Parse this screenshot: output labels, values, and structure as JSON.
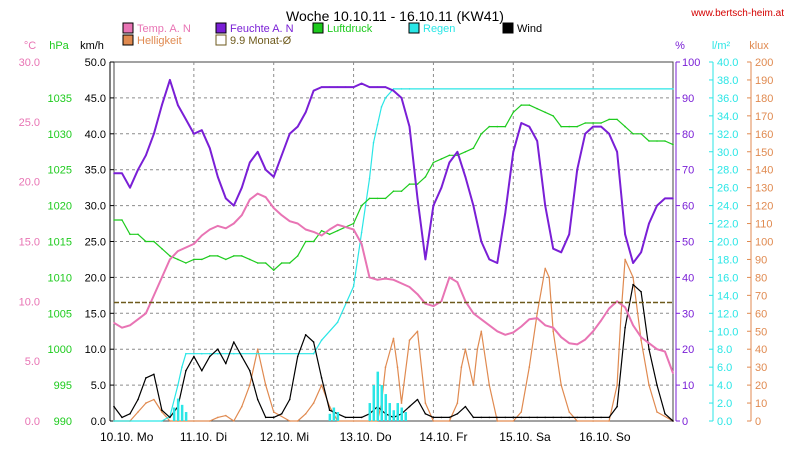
{
  "colors": {
    "temp": "#e874b4",
    "humidity": "#7a1fd6",
    "pressure": "#1ecb1e",
    "rain": "#2ae6e6",
    "wind": "#000000",
    "brightness": "#e08a50",
    "monthly_avg": "#6e5a1c",
    "grid": "#8c8c8c",
    "website": "#d40000"
  },
  "chart_data": {
    "type": "line",
    "title": "Woche 10.10.11 - 16.10.11 (KW41)",
    "website": "www.bertsch-heim.at",
    "x_days": [
      "10.10.  Mo",
      "11.10.  Di",
      "12.10.  Mi",
      "13.10.  Do",
      "14.10.  Fr",
      "15.10.  Sa",
      "16.10.  So"
    ],
    "x_range_days": [
      0,
      7
    ],
    "legend": [
      {
        "label": "Temp. A. N",
        "color_key": "temp",
        "style": "filled"
      },
      {
        "label": "Feuchte A. N",
        "color_key": "humidity",
        "style": "filled"
      },
      {
        "label": "Luftdruck",
        "color_key": "pressure",
        "style": "filled"
      },
      {
        "label": "Regen",
        "color_key": "rain",
        "style": "filled"
      },
      {
        "label": "Wind",
        "color_key": "wind",
        "style": "filled"
      },
      {
        "label": "Helligkeit",
        "color_key": "brightness",
        "style": "filled"
      },
      {
        "label": "9.9 Monat-Ø",
        "color_key": "monthly_avg",
        "style": "outline"
      }
    ],
    "axes": {
      "temp": {
        "unit": "°C",
        "range": [
          0,
          30
        ],
        "ticks": [
          "0.0",
          "5.0",
          "10.0",
          "15.0",
          "20.0",
          "25.0",
          "30.0"
        ],
        "color_key": "temp"
      },
      "pressure": {
        "unit": "hPa",
        "range": [
          990,
          1040
        ],
        "ticks": [
          "990",
          "995",
          "1000",
          "1005",
          "1010",
          "1015",
          "1020",
          "1025",
          "1030",
          "1035"
        ],
        "color_key": "pressure"
      },
      "wind": {
        "unit": "km/h",
        "range": [
          0,
          50
        ],
        "ticks": [
          "0.0",
          "5.0",
          "10.0",
          "15.0",
          "20.0",
          "25.0",
          "30.0",
          "35.0",
          "40.0",
          "45.0",
          "50.0"
        ],
        "color_key": "wind"
      },
      "humidity": {
        "unit": "%",
        "range": [
          0,
          100
        ],
        "ticks": [
          "0",
          "10",
          "20",
          "30",
          "40",
          "50",
          "60",
          "70",
          "80",
          "90",
          "100"
        ],
        "color_key": "humidity"
      },
      "rain": {
        "unit": "l/m²",
        "range": [
          0,
          40
        ],
        "ticks": [
          "0.0",
          "2.0",
          "4.0",
          "6.0",
          "8.0",
          "10.0",
          "12.0",
          "14.0",
          "16.0",
          "18.0",
          "20.0",
          "22.0",
          "24.0",
          "26.0",
          "28.0",
          "30.0",
          "32.0",
          "34.0",
          "36.0",
          "38.0",
          "40.0"
        ],
        "color_key": "rain"
      },
      "brightness": {
        "unit": "klux",
        "range": [
          0,
          200
        ],
        "ticks": [
          "0",
          "10",
          "20",
          "30",
          "40",
          "50",
          "60",
          "70",
          "80",
          "90",
          "100",
          "110",
          "120",
          "130",
          "140",
          "150",
          "160",
          "170",
          "180",
          "190",
          "200"
        ],
        "color_key": "brightness"
      }
    },
    "monthly_avg_temp": 9.9,
    "series": [
      {
        "name": "Temp. A. N",
        "axis": "temp",
        "color_key": "temp",
        "x": [
          0,
          0.1,
          0.2,
          0.3,
          0.4,
          0.5,
          0.6,
          0.7,
          0.8,
          0.9,
          1.0,
          1.1,
          1.2,
          1.3,
          1.4,
          1.5,
          1.6,
          1.7,
          1.8,
          1.9,
          2.0,
          2.1,
          2.2,
          2.3,
          2.4,
          2.5,
          2.6,
          2.7,
          2.8,
          2.9,
          3.0,
          3.1,
          3.2,
          3.3,
          3.4,
          3.5,
          3.6,
          3.7,
          3.8,
          3.9,
          4.0,
          4.1,
          4.2,
          4.3,
          4.4,
          4.5,
          4.6,
          4.7,
          4.8,
          4.9,
          5.0,
          5.1,
          5.2,
          5.3,
          5.4,
          5.5,
          5.6,
          5.7,
          5.8,
          5.9,
          6.0,
          6.1,
          6.2,
          6.3,
          6.4,
          6.5,
          6.6,
          6.7,
          6.8,
          6.9,
          7.0
        ],
        "values": [
          8.2,
          7.8,
          8.0,
          8.5,
          9.0,
          10.5,
          12.0,
          13.5,
          14.2,
          14.5,
          14.8,
          15.5,
          16.0,
          16.3,
          16.1,
          16.5,
          17.2,
          18.5,
          19.0,
          18.7,
          17.8,
          17.2,
          16.7,
          16.5,
          16.0,
          15.8,
          15.5,
          16.0,
          16.4,
          16.2,
          16.0,
          14.8,
          12.0,
          11.8,
          11.9,
          11.8,
          11.5,
          11.2,
          10.6,
          9.8,
          9.6,
          10.0,
          12.0,
          11.6,
          10.0,
          9.0,
          8.5,
          8.0,
          7.5,
          7.2,
          7.4,
          7.9,
          8.5,
          8.6,
          8.0,
          7.8,
          7.0,
          6.5,
          6.4,
          6.8,
          7.5,
          8.4,
          9.4,
          10.0,
          9.5,
          8.0,
          7.0,
          6.5,
          6.0,
          5.8,
          4.0
        ]
      },
      {
        "name": "Feuchte A. N",
        "axis": "humidity",
        "color_key": "humidity",
        "x": [
          0,
          0.1,
          0.2,
          0.3,
          0.4,
          0.5,
          0.6,
          0.7,
          0.8,
          0.9,
          1.0,
          1.1,
          1.2,
          1.3,
          1.4,
          1.5,
          1.6,
          1.7,
          1.8,
          1.9,
          2.0,
          2.1,
          2.2,
          2.3,
          2.4,
          2.5,
          2.6,
          2.7,
          2.8,
          2.9,
          3.0,
          3.1,
          3.2,
          3.3,
          3.4,
          3.5,
          3.6,
          3.7,
          3.8,
          3.9,
          4.0,
          4.1,
          4.2,
          4.3,
          4.4,
          4.5,
          4.6,
          4.7,
          4.8,
          4.9,
          5.0,
          5.1,
          5.2,
          5.3,
          5.4,
          5.5,
          5.6,
          5.7,
          5.8,
          5.9,
          6.0,
          6.1,
          6.2,
          6.3,
          6.4,
          6.5,
          6.6,
          6.7,
          6.8,
          6.9,
          7.0
        ],
        "values": [
          69,
          69,
          65,
          70,
          74,
          80,
          88,
          95,
          88,
          84,
          80,
          81,
          76,
          68,
          62,
          60,
          65,
          72,
          75,
          70,
          68,
          74,
          80,
          82,
          86,
          92,
          93,
          93,
          93,
          93,
          93,
          94,
          93,
          93,
          93,
          92,
          90,
          82,
          62,
          45,
          60,
          65,
          72,
          75,
          68,
          60,
          50,
          45,
          44,
          58,
          75,
          83,
          82,
          78,
          60,
          48,
          47,
          52,
          70,
          80,
          82,
          82,
          80,
          75,
          52,
          44,
          47,
          55,
          60,
          62,
          62
        ]
      },
      {
        "name": "Luftdruck",
        "axis": "pressure",
        "color_key": "pressure",
        "x": [
          0,
          0.1,
          0.2,
          0.3,
          0.4,
          0.5,
          0.6,
          0.7,
          0.8,
          0.9,
          1.0,
          1.1,
          1.2,
          1.3,
          1.4,
          1.5,
          1.6,
          1.7,
          1.8,
          1.9,
          2.0,
          2.1,
          2.2,
          2.3,
          2.4,
          2.5,
          2.6,
          2.7,
          2.8,
          2.9,
          3.0,
          3.1,
          3.2,
          3.3,
          3.4,
          3.5,
          3.6,
          3.7,
          3.8,
          3.9,
          4.0,
          4.1,
          4.2,
          4.3,
          4.4,
          4.5,
          4.6,
          4.7,
          4.8,
          4.9,
          5.0,
          5.1,
          5.2,
          5.3,
          5.4,
          5.5,
          5.6,
          5.7,
          5.8,
          5.9,
          6.0,
          6.1,
          6.2,
          6.3,
          6.4,
          6.5,
          6.6,
          6.7,
          6.8,
          6.9,
          7.0
        ],
        "values": [
          1018,
          1018,
          1016,
          1016,
          1015,
          1015,
          1014,
          1013,
          1012.5,
          1012,
          1012.5,
          1012.5,
          1013,
          1013,
          1012.5,
          1013,
          1013,
          1012.5,
          1012,
          1012,
          1011,
          1012,
          1012,
          1013,
          1015,
          1015,
          1016.5,
          1016,
          1016.5,
          1017,
          1017.5,
          1020,
          1021,
          1021,
          1021,
          1022,
          1022,
          1023,
          1023,
          1024,
          1026,
          1026.5,
          1027,
          1027,
          1027.5,
          1028,
          1030,
          1031,
          1031,
          1031,
          1033,
          1034,
          1034,
          1033.5,
          1033,
          1032.5,
          1031,
          1031,
          1031,
          1031.5,
          1031.5,
          1031.5,
          1032,
          1032,
          1031,
          1030,
          1030,
          1029,
          1029,
          1029,
          1028.5
        ]
      },
      {
        "name": "Regen",
        "axis": "rain",
        "color_key": "rain",
        "x": [
          0,
          0.6,
          0.7,
          0.8,
          0.85,
          0.9,
          1.0,
          1.1,
          1.2,
          1.3,
          1.5,
          2.0,
          2.5,
          2.6,
          2.8,
          3.0,
          3.1,
          3.2,
          3.25,
          3.3,
          3.35,
          3.4,
          3.5,
          3.6,
          3.7,
          7.0
        ],
        "values": [
          0,
          0,
          0.5,
          4,
          6,
          7.5,
          7.5,
          7.5,
          7.5,
          7.5,
          7.5,
          7.5,
          7.5,
          9,
          11,
          15,
          21,
          27,
          31,
          33,
          35,
          36,
          37,
          37,
          37,
          37
        ]
      },
      {
        "name": "Wind",
        "axis": "wind",
        "color_key": "wind",
        "x": [
          0,
          0.1,
          0.2,
          0.3,
          0.4,
          0.5,
          0.6,
          0.7,
          0.8,
          0.9,
          1.0,
          1.1,
          1.2,
          1.3,
          1.4,
          1.5,
          1.6,
          1.7,
          1.8,
          1.9,
          2.0,
          2.1,
          2.2,
          2.3,
          2.4,
          2.5,
          2.6,
          2.7,
          2.8,
          2.9,
          3.0,
          3.1,
          3.2,
          3.3,
          3.4,
          3.5,
          3.6,
          3.7,
          3.8,
          3.9,
          4.0,
          4.1,
          4.2,
          4.3,
          4.4,
          4.5,
          4.6,
          4.7,
          4.8,
          4.9,
          5.0,
          5.1,
          5.2,
          5.3,
          5.4,
          5.5,
          5.6,
          5.7,
          5.8,
          5.9,
          6.0,
          6.1,
          6.2,
          6.3,
          6.4,
          6.5,
          6.6,
          6.7,
          6.8,
          6.9,
          7.0
        ],
        "values": [
          2,
          0.5,
          1,
          3,
          6,
          6.5,
          1.5,
          0.5,
          2,
          7,
          9,
          7,
          9,
          10,
          8,
          11,
          9,
          7,
          3,
          0.5,
          0.5,
          1,
          3,
          9,
          12,
          11,
          6,
          1.5,
          1,
          0.5,
          0.5,
          0.5,
          1,
          2,
          1,
          0.5,
          1,
          2,
          3,
          1,
          0.5,
          0.5,
          0.5,
          1,
          2,
          0.5,
          0.5,
          0.5,
          0.5,
          0.5,
          0.5,
          0.5,
          0.5,
          0.5,
          0.5,
          0.5,
          0.5,
          0.5,
          0.5,
          0.5,
          0.5,
          0.5,
          0.5,
          2,
          13,
          19,
          18,
          10,
          5,
          1,
          0
        ]
      },
      {
        "name": "Helligkeit",
        "axis": "brightness",
        "color_key": "brightness",
        "x": [
          0,
          0.2,
          0.3,
          0.4,
          0.5,
          0.6,
          0.7,
          0.8,
          1.0,
          1.2,
          1.3,
          1.4,
          1.5,
          1.6,
          1.7,
          1.8,
          1.9,
          2.0,
          2.2,
          2.3,
          2.4,
          2.5,
          2.6,
          2.7,
          2.8,
          3.0,
          3.2,
          3.3,
          3.35,
          3.4,
          3.5,
          3.55,
          3.6,
          3.7,
          3.8,
          3.9,
          4.0,
          4.2,
          4.3,
          4.35,
          4.4,
          4.5,
          4.55,
          4.6,
          4.7,
          4.8,
          5.0,
          5.1,
          5.2,
          5.3,
          5.4,
          5.45,
          5.5,
          5.6,
          5.7,
          5.8,
          6.0,
          6.2,
          6.3,
          6.35,
          6.4,
          6.5,
          6.6,
          6.7,
          6.8,
          7.0
        ],
        "values": [
          0,
          0,
          5,
          10,
          12,
          5,
          0,
          0,
          0,
          0,
          2,
          3,
          0,
          8,
          20,
          40,
          20,
          5,
          0,
          0,
          4,
          10,
          20,
          8,
          0,
          0,
          0,
          0,
          10,
          30,
          46,
          30,
          10,
          45,
          50,
          10,
          0,
          0,
          10,
          30,
          40,
          20,
          40,
          50,
          20,
          0,
          0,
          5,
          30,
          60,
          85,
          80,
          50,
          20,
          5,
          0,
          0,
          0,
          20,
          60,
          90,
          80,
          45,
          20,
          5,
          0
        ]
      }
    ]
  }
}
